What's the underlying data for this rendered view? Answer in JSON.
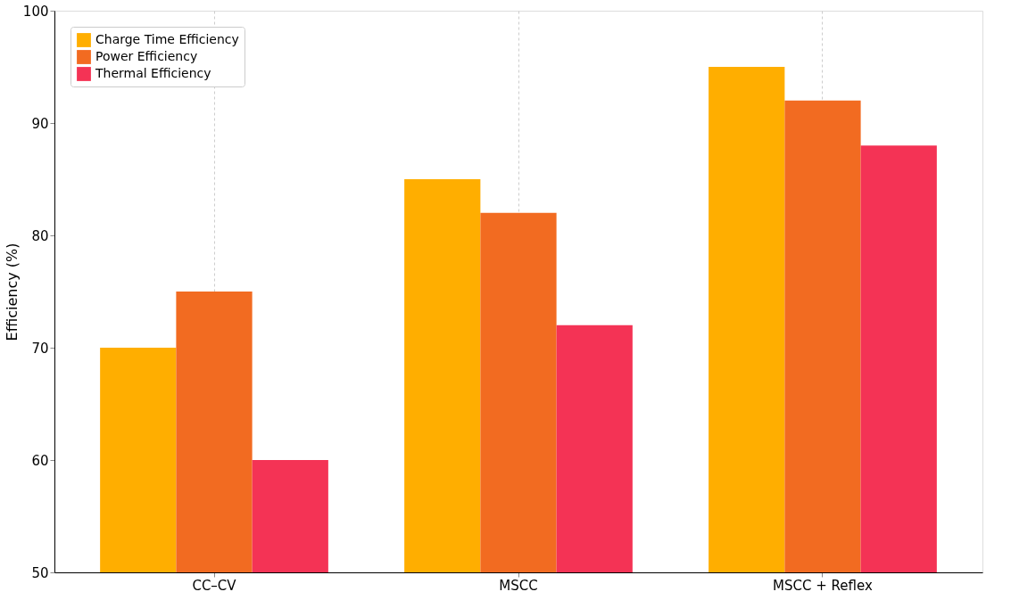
{
  "chart_data": {
    "type": "bar",
    "ylabel": "Efficiency (%)",
    "categories": [
      "CC–CV",
      "MSCC",
      "MSCC + Reflex"
    ],
    "series": [
      {
        "name": "Charge Time Efficiency",
        "color": "#ffae00",
        "values": [
          70,
          85,
          95
        ]
      },
      {
        "name": "Power Efficiency",
        "color": "#f26b21",
        "values": [
          75,
          82,
          92
        ]
      },
      {
        "name": "Thermal Efficiency",
        "color": "#f43355",
        "values": [
          60,
          72,
          88
        ]
      }
    ],
    "ylim": [
      50,
      100
    ],
    "yticks": [
      50,
      60,
      70,
      80,
      90,
      100
    ],
    "grid": "x",
    "legend": "top left"
  }
}
